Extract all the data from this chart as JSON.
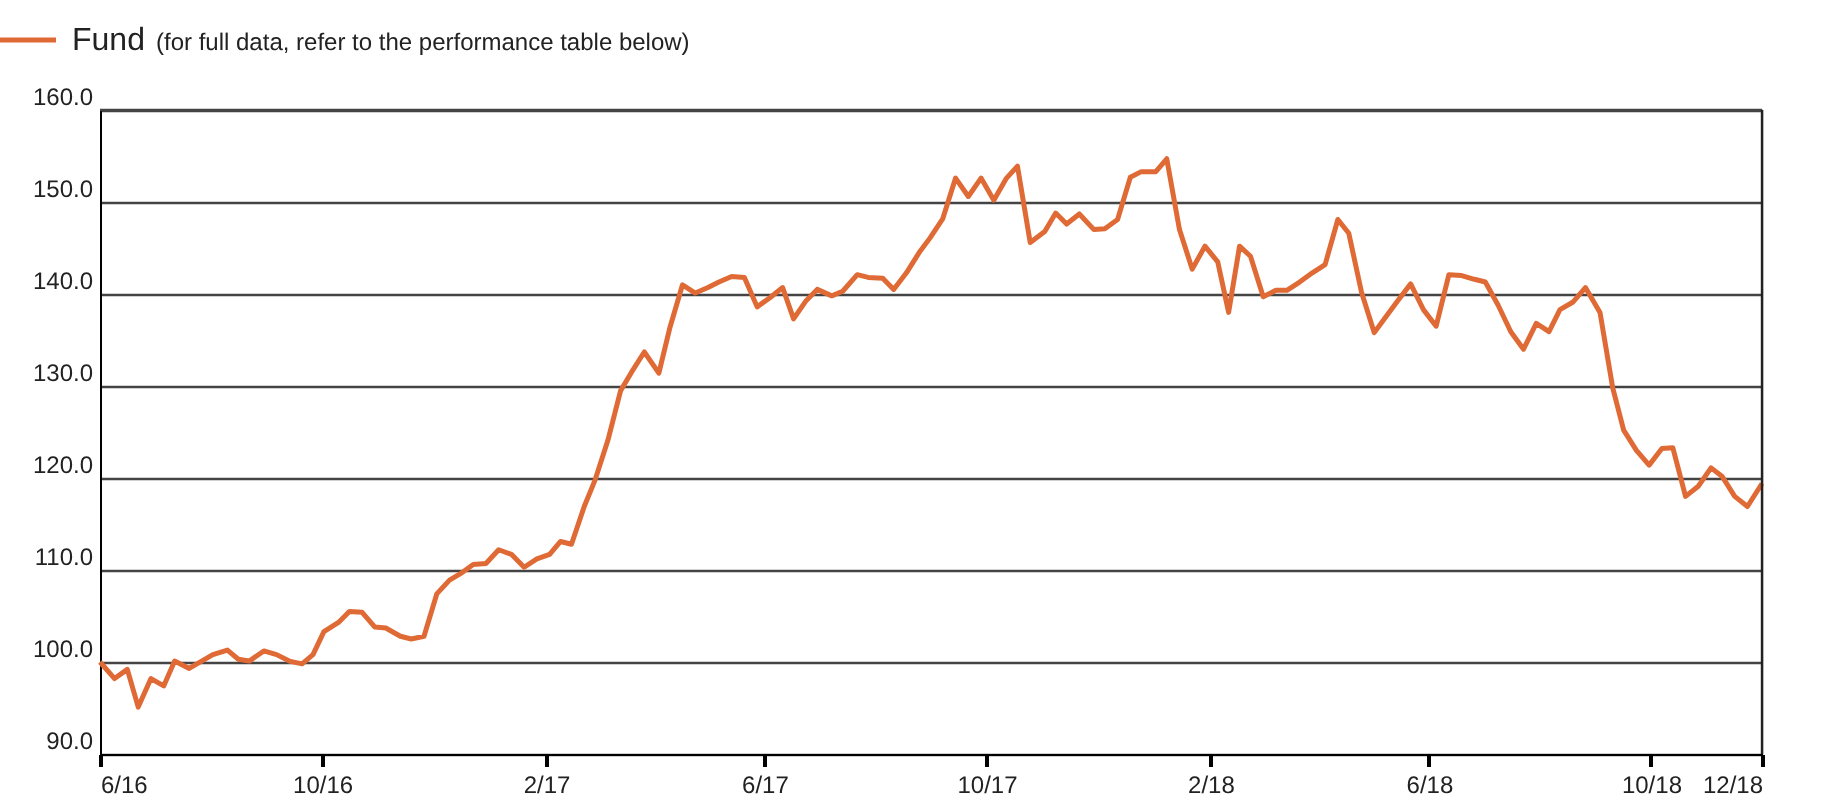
{
  "chart_data": {
    "type": "line",
    "annotations": [
      "(for full data, refer to the performance table below)"
    ],
    "legend": "top left",
    "grid": "y",
    "line_style": "solid",
    "marker": "none",
    "xlim": [
      "2016-06-01",
      "2018-12-01"
    ],
    "ylim": [
      90,
      160
    ],
    "xticks": [
      {
        "value": "2016-06-01",
        "label": "6/16"
      },
      {
        "value": "2016-10-01",
        "label": "10/16"
      },
      {
        "value": "2017-02-01",
        "label": "2/17"
      },
      {
        "value": "2017-06-01",
        "label": "6/17"
      },
      {
        "value": "2017-10-01",
        "label": "10/17"
      },
      {
        "value": "2018-02-01",
        "label": "2/18"
      },
      {
        "value": "2018-06-01",
        "label": "6/18"
      },
      {
        "value": "2018-10-01",
        "label": "10/18"
      },
      {
        "value": "2018-12-01",
        "label": "12/18"
      }
    ],
    "yticks": [
      {
        "value": 90,
        "label": "90.0"
      },
      {
        "value": 100,
        "label": "100.0"
      },
      {
        "value": 110,
        "label": "110.0"
      },
      {
        "value": 120,
        "label": "120.0"
      },
      {
        "value": 130,
        "label": "130.0"
      },
      {
        "value": 140,
        "label": "140.0"
      },
      {
        "value": 150,
        "label": "150.0"
      },
      {
        "value": 160,
        "label": "160.0"
      }
    ],
    "series": [
      {
        "name": "Fund",
        "color": "#e06a35",
        "x": [
          "2016-06-01",
          "2016-06-09",
          "2016-06-16",
          "2016-06-22",
          "2016-06-29",
          "2016-07-06",
          "2016-07-12",
          "2016-07-20",
          "2016-08-02",
          "2016-08-10",
          "2016-08-16",
          "2016-08-22",
          "2016-08-30",
          "2016-09-06",
          "2016-09-13",
          "2016-09-20",
          "2016-09-26",
          "2016-10-02",
          "2016-10-10",
          "2016-10-16",
          "2016-10-23",
          "2016-10-30",
          "2016-11-05",
          "2016-11-13",
          "2016-11-19",
          "2016-11-26",
          "2016-12-03",
          "2016-12-10",
          "2016-12-16",
          "2016-12-23",
          "2016-12-30",
          "2017-01-06",
          "2017-01-13",
          "2017-01-20",
          "2017-01-27",
          "2017-02-03",
          "2017-02-09",
          "2017-02-15",
          "2017-02-22",
          "2017-02-28",
          "2017-03-07",
          "2017-03-14",
          "2017-03-20",
          "2017-03-27",
          "2017-04-04",
          "2017-04-10",
          "2017-04-17",
          "2017-04-24",
          "2017-05-01",
          "2017-05-07",
          "2017-05-14",
          "2017-05-21",
          "2017-05-28",
          "2017-06-04",
          "2017-06-11",
          "2017-06-17",
          "2017-06-24",
          "2017-06-30",
          "2017-07-08",
          "2017-07-14",
          "2017-07-22",
          "2017-07-28",
          "2017-08-05",
          "2017-08-11",
          "2017-08-18",
          "2017-08-25",
          "2017-08-31",
          "2017-09-07",
          "2017-09-14",
          "2017-09-21",
          "2017-09-28",
          "2017-10-05",
          "2017-10-12",
          "2017-10-18",
          "2017-10-25",
          "2017-11-02",
          "2017-11-08",
          "2017-11-14",
          "2017-11-21",
          "2017-11-29",
          "2017-12-05",
          "2017-12-12",
          "2017-12-19",
          "2017-12-25",
          "2018-01-02",
          "2018-01-08",
          "2018-01-15",
          "2018-01-22",
          "2018-01-29",
          "2018-02-05",
          "2018-02-11",
          "2018-02-17",
          "2018-02-23",
          "2018-03-02",
          "2018-03-09",
          "2018-03-15",
          "2018-03-22",
          "2018-03-29",
          "2018-04-05",
          "2018-04-12",
          "2018-04-18",
          "2018-04-25",
          "2018-05-02",
          "2018-05-09",
          "2018-05-15",
          "2018-05-22",
          "2018-05-29",
          "2018-06-05",
          "2018-06-12",
          "2018-06-19",
          "2018-06-26",
          "2018-07-02",
          "2018-07-09",
          "2018-07-16",
          "2018-07-23",
          "2018-07-30",
          "2018-08-06",
          "2018-08-12",
          "2018-08-19",
          "2018-08-26",
          "2018-09-03",
          "2018-09-10",
          "2018-09-16",
          "2018-09-23",
          "2018-09-30",
          "2018-10-07",
          "2018-10-13",
          "2018-10-20",
          "2018-10-27",
          "2018-11-03",
          "2018-11-09",
          "2018-11-16",
          "2018-11-23",
          "2018-12-01"
        ],
        "values": [
          100.0,
          98.2,
          99.2,
          95.1,
          98.2,
          97.4,
          100.1,
          99.3,
          100.8,
          101.3,
          100.3,
          100.1,
          101.2,
          100.8,
          100.1,
          99.8,
          100.8,
          103.3,
          104.3,
          105.5,
          105.4,
          103.8,
          103.7,
          102.8,
          102.5,
          102.8,
          107.4,
          108.9,
          109.6,
          110.6,
          110.7,
          112.2,
          111.7,
          110.3,
          111.2,
          111.7,
          113.1,
          112.8,
          116.9,
          119.8,
          124.1,
          129.5,
          131.5,
          133.7,
          131.4,
          136.3,
          141.0,
          140.1,
          140.7,
          141.3,
          141.9,
          141.8,
          138.6,
          139.6,
          140.7,
          137.3,
          139.3,
          140.5,
          139.8,
          140.3,
          142.1,
          141.8,
          141.7,
          140.5,
          142.3,
          144.5,
          146.1,
          148.2,
          152.6,
          150.6,
          152.6,
          150.2,
          152.6,
          153.9,
          145.6,
          146.8,
          148.8,
          147.6,
          148.7,
          147.0,
          147.1,
          148.1,
          152.7,
          153.3,
          153.3,
          154.7,
          147.0,
          142.7,
          145.2,
          143.5,
          138.0,
          145.2,
          144.1,
          139.7,
          140.4,
          140.4,
          141.3,
          142.3,
          143.2,
          148.1,
          146.6,
          140.2,
          135.8,
          137.7,
          139.3,
          141.1,
          138.3,
          136.5,
          142.1,
          142.0,
          141.6,
          141.3,
          138.8,
          135.9,
          134.0,
          136.8,
          135.9,
          138.3,
          139.1,
          140.7,
          138.0,
          129.8,
          125.2,
          123.0,
          121.4,
          123.2,
          123.3,
          118.0,
          119.1,
          121.1,
          120.2,
          118.0,
          116.9,
          119.4
        ]
      }
    ]
  }
}
